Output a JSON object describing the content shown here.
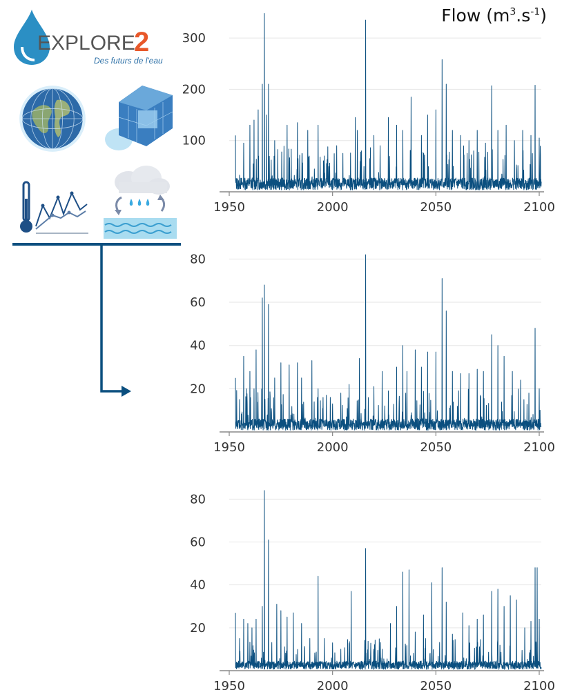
{
  "logo": {
    "name": "EXPLORE",
    "digit": "2",
    "tagline": "Des futurs de l'eau"
  },
  "flow_label": {
    "prefix": "Flow (m",
    "sup1": "3",
    "mid": ".s",
    "sup2": "-1",
    "suffix": ")"
  },
  "colors": {
    "line": "#0b4f7f",
    "grid": "#e6e6e6",
    "axis": "#888888",
    "brand_blue": "#2b8fc4",
    "brand_orange": "#e8582a",
    "arrow": "#0b4f7f"
  },
  "icons": [
    "globe-icon",
    "regional-model-icon",
    "climate-chart-icon",
    "hydrology-rain-icon"
  ],
  "chart_data": [
    {
      "type": "line",
      "title": "",
      "xlabel": "",
      "ylabel": "Flow (m3.s-1)",
      "xlim": [
        1952,
        2101
      ],
      "ylim": [
        0,
        350
      ],
      "x_ticks": [
        "1950",
        "2000",
        "2050",
        "2100"
      ],
      "y_ticks": [
        "100",
        "200",
        "300"
      ],
      "baseline": 18,
      "peaks": [
        [
          1953,
          110
        ],
        [
          1957,
          95
        ],
        [
          1960,
          130
        ],
        [
          1962,
          140
        ],
        [
          1964,
          160
        ],
        [
          1966,
          210
        ],
        [
          1967,
          348
        ],
        [
          1968,
          150
        ],
        [
          1969,
          210
        ],
        [
          1972,
          100
        ],
        [
          1978,
          130
        ],
        [
          1983,
          135
        ],
        [
          1988,
          120
        ],
        [
          1993,
          130
        ],
        [
          1996,
          70
        ],
        [
          2002,
          90
        ],
        [
          2005,
          75
        ],
        [
          2011,
          145
        ],
        [
          2012,
          120
        ],
        [
          2014,
          80
        ],
        [
          2016,
          335
        ],
        [
          2020,
          110
        ],
        [
          2023,
          90
        ],
        [
          2027,
          145
        ],
        [
          2031,
          130
        ],
        [
          2034,
          120
        ],
        [
          2038,
          185
        ],
        [
          2043,
          110
        ],
        [
          2046,
          150
        ],
        [
          2050,
          160
        ],
        [
          2053,
          258
        ],
        [
          2055,
          210
        ],
        [
          2058,
          120
        ],
        [
          2062,
          110
        ],
        [
          2066,
          100
        ],
        [
          2070,
          120
        ],
        [
          2074,
          95
        ],
        [
          2077,
          207
        ],
        [
          2080,
          120
        ],
        [
          2084,
          130
        ],
        [
          2088,
          100
        ],
        [
          2092,
          120
        ],
        [
          2096,
          110
        ],
        [
          2098,
          208
        ],
        [
          2100,
          105
        ]
      ]
    },
    {
      "type": "line",
      "title": "",
      "xlabel": "",
      "ylabel": "",
      "xlim": [
        1952,
        2101
      ],
      "ylim": [
        0,
        83
      ],
      "x_ticks": [
        "1950",
        "2000",
        "2050",
        "2100"
      ],
      "y_ticks": [
        "20",
        "40",
        "60",
        "80"
      ],
      "baseline": 4,
      "peaks": [
        [
          1953,
          25
        ],
        [
          1955,
          15
        ],
        [
          1957,
          35
        ],
        [
          1960,
          28
        ],
        [
          1962,
          20
        ],
        [
          1963,
          38
        ],
        [
          1966,
          62
        ],
        [
          1967,
          68
        ],
        [
          1969,
          59
        ],
        [
          1972,
          25
        ],
        [
          1975,
          32
        ],
        [
          1979,
          31
        ],
        [
          1983,
          32
        ],
        [
          1985,
          25
        ],
        [
          1990,
          33
        ],
        [
          1993,
          20
        ],
        [
          1997,
          17
        ],
        [
          2000,
          13
        ],
        [
          2004,
          18
        ],
        [
          2008,
          22
        ],
        [
          2013,
          34
        ],
        [
          2016,
          82
        ],
        [
          2020,
          21
        ],
        [
          2024,
          28
        ],
        [
          2027,
          19
        ],
        [
          2031,
          30
        ],
        [
          2034,
          40
        ],
        [
          2036,
          28
        ],
        [
          2040,
          38
        ],
        [
          2043,
          30
        ],
        [
          2046,
          37
        ],
        [
          2050,
          37
        ],
        [
          2053,
          71
        ],
        [
          2055,
          56
        ],
        [
          2058,
          28
        ],
        [
          2062,
          27
        ],
        [
          2066,
          27
        ],
        [
          2070,
          29
        ],
        [
          2073,
          28
        ],
        [
          2077,
          45
        ],
        [
          2080,
          40
        ],
        [
          2083,
          35
        ],
        [
          2087,
          28
        ],
        [
          2091,
          24
        ],
        [
          2095,
          18
        ],
        [
          2098,
          48
        ],
        [
          2100,
          20
        ]
      ]
    },
    {
      "type": "line",
      "title": "",
      "xlabel": "",
      "ylabel": "",
      "xlim": [
        1952,
        2101
      ],
      "ylim": [
        0,
        83
      ],
      "x_ticks": [
        "1950",
        "2000",
        "2050",
        "2100"
      ],
      "y_ticks": [
        "20",
        "40",
        "60",
        "80"
      ],
      "baseline": 3,
      "peaks": [
        [
          1953,
          27
        ],
        [
          1955,
          15
        ],
        [
          1957,
          24
        ],
        [
          1959,
          22
        ],
        [
          1961,
          20
        ],
        [
          1963,
          24
        ],
        [
          1966,
          30
        ],
        [
          1967,
          84
        ],
        [
          1969,
          61
        ],
        [
          1973,
          31
        ],
        [
          1975,
          28
        ],
        [
          1978,
          25
        ],
        [
          1981,
          27
        ],
        [
          1985,
          22
        ],
        [
          1989,
          15
        ],
        [
          1993,
          44
        ],
        [
          1996,
          15
        ],
        [
          2000,
          13
        ],
        [
          2004,
          10
        ],
        [
          2009,
          37
        ],
        [
          2016,
          57
        ],
        [
          2020,
          10
        ],
        [
          2024,
          10
        ],
        [
          2028,
          22
        ],
        [
          2031,
          30
        ],
        [
          2034,
          46
        ],
        [
          2037,
          47
        ],
        [
          2040,
          18
        ],
        [
          2044,
          26
        ],
        [
          2048,
          41
        ],
        [
          2053,
          48
        ],
        [
          2055,
          32
        ],
        [
          2058,
          17
        ],
        [
          2063,
          27
        ],
        [
          2066,
          21
        ],
        [
          2070,
          24
        ],
        [
          2073,
          26
        ],
        [
          2077,
          37
        ],
        [
          2080,
          38
        ],
        [
          2083,
          30
        ],
        [
          2086,
          35
        ],
        [
          2089,
          33
        ],
        [
          2093,
          20
        ],
        [
          2096,
          23
        ],
        [
          2098,
          48
        ],
        [
          2099,
          48
        ],
        [
          2100,
          24
        ]
      ]
    }
  ]
}
